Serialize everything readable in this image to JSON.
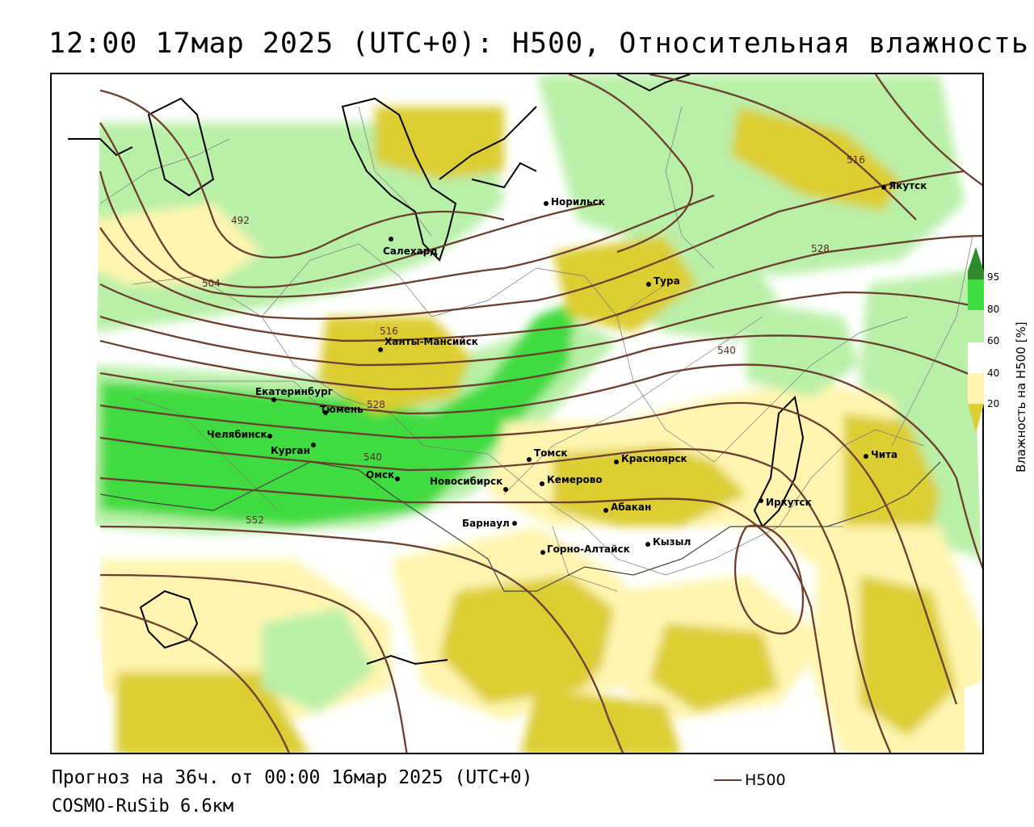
{
  "title": "12:00 17мар 2025 (UTC+0): H500, Относительная влажность",
  "forecast_line": "Прогноз на 36ч. от 00:00 16мар 2025 (UTC+0)",
  "model_line": "COSMO-RuSib 6.6км",
  "legend": {
    "title": "Влажность на H500 [%]",
    "ticks": [
      "95",
      "80",
      "60",
      "40",
      "20"
    ],
    "colors": {
      "95": "#2e8b2e",
      "80": "#3fdb3f",
      "60": "#b9f0a8",
      "40": "#ffffff",
      "20": "#fff5b0",
      "0": "#dccd32"
    },
    "h500_label": "H500",
    "h500_color": "#6b3e2e"
  },
  "contour_labels": [
    "492",
    "504",
    "516",
    "516",
    "528",
    "528",
    "540",
    "540",
    "552"
  ],
  "cities": [
    "Норильск",
    "Якутск",
    "Салехард",
    "Тура",
    "Ханты-Мансийск",
    "Екатеринбург",
    "Тюмень",
    "Челябинск",
    "Курган",
    "Омск",
    "Новосибирск",
    "Томск",
    "Кемерово",
    "Красноярск",
    "Барнаул",
    "Абакан",
    "Горно-Алтайск",
    "Кызыл",
    "Иркутск",
    "Чита"
  ]
}
